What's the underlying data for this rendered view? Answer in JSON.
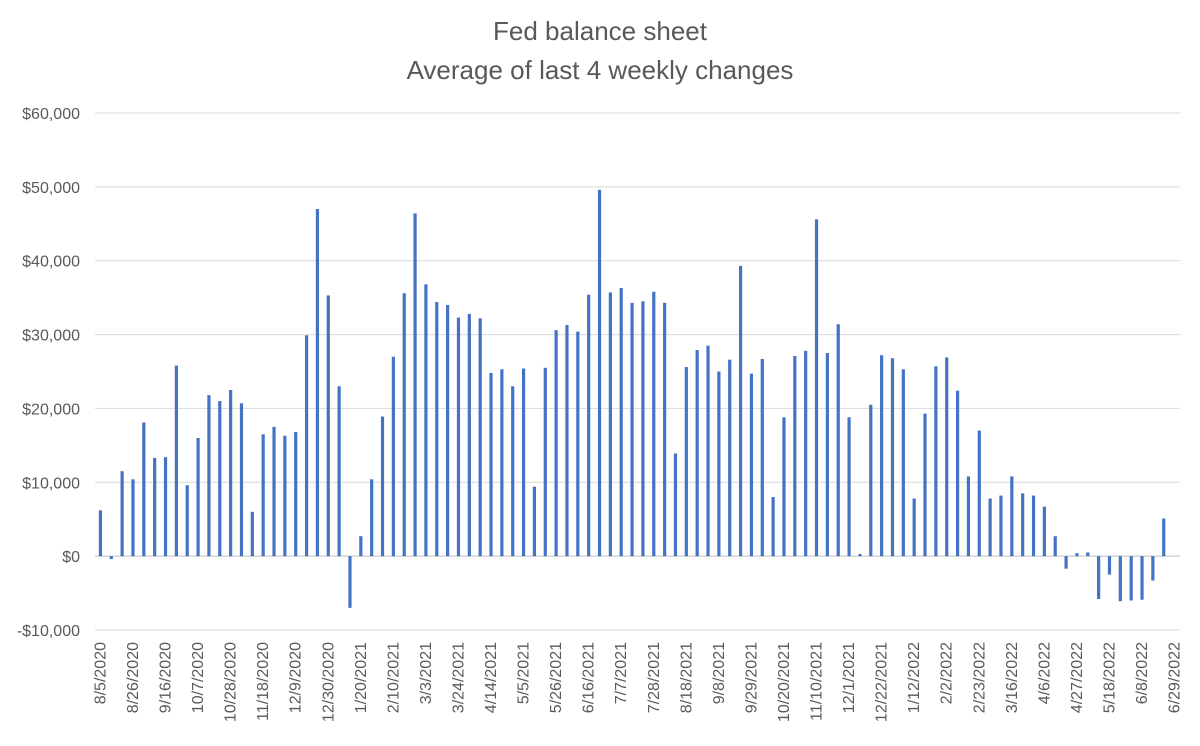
{
  "chart_data": {
    "type": "bar",
    "title": "Fed balance sheet",
    "subtitle": "Average of last 4 weekly changes",
    "xlabel": "",
    "ylabel": "",
    "ylim": [
      -10000,
      60000
    ],
    "yticks": [
      -10000,
      0,
      10000,
      20000,
      30000,
      40000,
      50000,
      60000
    ],
    "ytick_labels": [
      "-$10,000",
      "$0",
      "$10,000",
      "$20,000",
      "$30,000",
      "$40,000",
      "$50,000",
      "$60,000"
    ],
    "grid": true,
    "legend": "none",
    "bar_color": "#4472c4",
    "categories": [
      "8/5/2020",
      "8/12/2020",
      "8/19/2020",
      "8/26/2020",
      "9/2/2020",
      "9/9/2020",
      "9/16/2020",
      "9/23/2020",
      "9/30/2020",
      "10/7/2020",
      "10/14/2020",
      "10/21/2020",
      "10/28/2020",
      "11/4/2020",
      "11/11/2020",
      "11/18/2020",
      "11/25/2020",
      "12/2/2020",
      "12/9/2020",
      "12/16/2020",
      "12/23/2020",
      "12/30/2020",
      "1/6/2021",
      "1/13/2021",
      "1/20/2021",
      "1/27/2021",
      "2/3/2021",
      "2/10/2021",
      "2/17/2021",
      "2/24/2021",
      "3/3/2021",
      "3/10/2021",
      "3/17/2021",
      "3/24/2021",
      "3/31/2021",
      "4/7/2021",
      "4/14/2021",
      "4/21/2021",
      "4/28/2021",
      "5/5/2021",
      "5/12/2021",
      "5/19/2021",
      "5/26/2021",
      "6/2/2021",
      "6/9/2021",
      "6/16/2021",
      "6/23/2021",
      "6/30/2021",
      "7/7/2021",
      "7/14/2021",
      "7/21/2021",
      "7/28/2021",
      "8/4/2021",
      "8/11/2021",
      "8/18/2021",
      "8/25/2021",
      "9/1/2021",
      "9/8/2021",
      "9/15/2021",
      "9/22/2021",
      "9/29/2021",
      "10/6/2021",
      "10/13/2021",
      "10/20/2021",
      "10/27/2021",
      "11/3/2021",
      "11/10/2021",
      "11/17/2021",
      "11/24/2021",
      "12/1/2021",
      "12/8/2021",
      "12/15/2021",
      "12/22/2021",
      "12/29/2021",
      "1/5/2022",
      "1/12/2022",
      "1/19/2022",
      "1/26/2022",
      "2/2/2022",
      "2/9/2022",
      "2/16/2022",
      "2/23/2022",
      "3/2/2022",
      "3/9/2022",
      "3/16/2022",
      "3/23/2022",
      "3/30/2022",
      "4/6/2022",
      "4/13/2022",
      "4/20/2022",
      "4/27/2022",
      "5/4/2022",
      "5/11/2022",
      "5/18/2022",
      "5/25/2022",
      "6/1/2022",
      "6/8/2022",
      "6/15/2022",
      "6/22/2022",
      "6/29/2022"
    ],
    "values": [
      6200,
      -400,
      11500,
      10400,
      18100,
      13300,
      13400,
      25800,
      9600,
      16000,
      21800,
      21000,
      22500,
      20700,
      6000,
      16500,
      17500,
      16300,
      16800,
      29900,
      47000,
      35300,
      23000,
      -7000,
      2700,
      10400,
      18900,
      27000,
      35600,
      46400,
      36800,
      34400,
      34000,
      32300,
      32800,
      32200,
      24800,
      25300,
      23000,
      25400,
      9400,
      25500,
      30600,
      31300,
      30400,
      35400,
      49600,
      35700,
      36300,
      34300,
      34500,
      35800,
      34300,
      13900,
      25600,
      27900,
      28500,
      25000,
      26600,
      39300,
      24700,
      26700,
      8000,
      18800,
      27100,
      27800,
      45600,
      27500,
      31400,
      18800,
      300,
      20500,
      27200,
      26800,
      25300,
      7800,
      19300,
      25700,
      26900,
      22400,
      10800,
      17000,
      7800,
      8200,
      10800,
      8500,
      8200,
      6700,
      2700,
      -1700,
      400,
      500,
      -5800,
      -2500,
      -6100,
      -6000,
      -5900,
      -3300,
      5100,
      null
    ],
    "visible_tick_every": 3
  }
}
